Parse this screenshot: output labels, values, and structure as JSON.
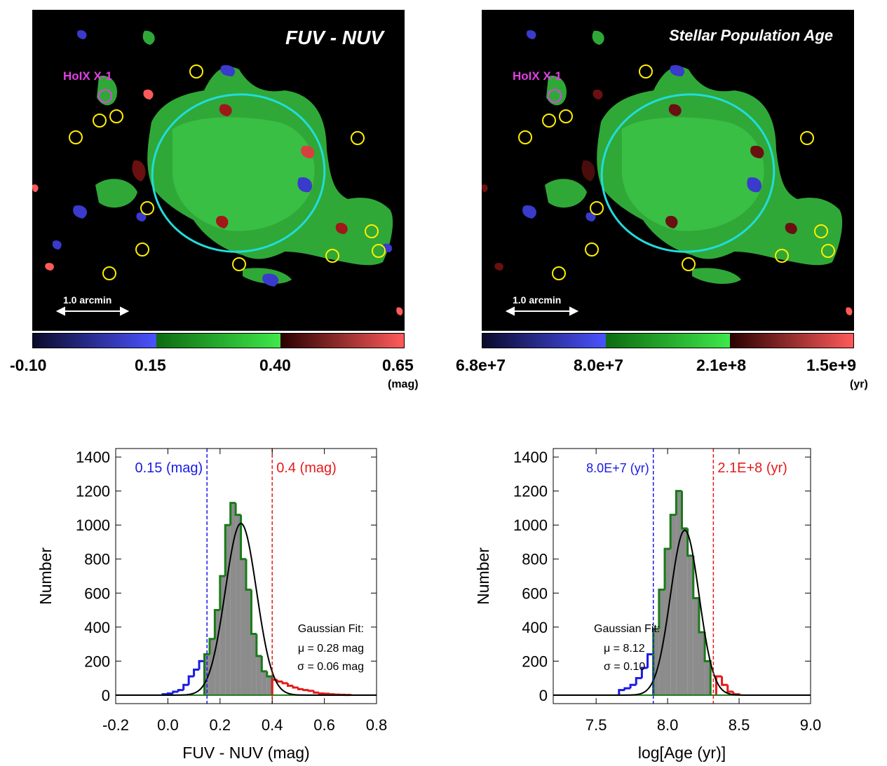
{
  "maps": [
    {
      "title": "FUV - NUV",
      "source_label": "HoIX X-1",
      "scale_bar_label": "1.0 arcmin",
      "colorbar": {
        "ticks": [
          "-0.10",
          "0.15",
          "0.40",
          "0.65"
        ],
        "unit": "(mag)",
        "colors": [
          "#0a0a2a",
          "#4a52ff",
          "#0d6b10",
          "#3ee84a",
          "#2a0000",
          "#ff5a5a"
        ]
      }
    },
    {
      "title": "Stellar Population Age",
      "source_label": "HoIX X-1",
      "scale_bar_label": "1.0 arcmin",
      "colorbar": {
        "ticks": [
          "6.8e+7",
          "8.0e+7",
          "2.1e+8",
          "1.5e+9"
        ],
        "unit": "(yr)",
        "colors": [
          "#0a0a2a",
          "#4a52ff",
          "#0d6b10",
          "#3ee84a",
          "#2a0000",
          "#ff5a5a"
        ]
      }
    }
  ],
  "chart_data": [
    {
      "type": "bar",
      "subtype": "histogram",
      "xlabel": "FUV - NUV (mag)",
      "ylabel": "Number",
      "xlim": [
        -0.2,
        0.8
      ],
      "ylim": [
        -50,
        1450
      ],
      "xticks": [
        -0.2,
        0.0,
        0.2,
        0.4,
        0.6,
        0.8
      ],
      "xtick_labels": [
        "-0.2",
        "0.0",
        "0.2",
        "0.4",
        "0.6",
        "0.8"
      ],
      "yticks": [
        0,
        200,
        400,
        600,
        800,
        1000,
        1200,
        1400
      ],
      "ytick_labels": [
        "0",
        "200",
        "400",
        "600",
        "800",
        "1000",
        "1200",
        "1400"
      ],
      "bin_edges": [
        -0.02,
        0.0,
        0.02,
        0.04,
        0.06,
        0.08,
        0.1,
        0.12,
        0.14,
        0.16,
        0.18,
        0.2,
        0.22,
        0.24,
        0.26,
        0.28,
        0.3,
        0.32,
        0.34,
        0.36,
        0.38,
        0.4,
        0.42,
        0.44,
        0.46,
        0.48,
        0.5,
        0.52,
        0.54,
        0.56,
        0.58,
        0.6,
        0.62,
        0.64,
        0.66,
        0.68,
        0.7
      ],
      "counts": [
        5,
        10,
        20,
        30,
        60,
        110,
        150,
        200,
        240,
        330,
        500,
        700,
        1000,
        1130,
        1060,
        800,
        620,
        360,
        230,
        140,
        110,
        90,
        80,
        70,
        55,
        45,
        35,
        30,
        25,
        15,
        10,
        8,
        5,
        3,
        2,
        1
      ],
      "thresholds": [
        {
          "x": 0.15,
          "label": "0.15 (mag)",
          "color": "#1a1ae6"
        },
        {
          "x": 0.4,
          "label": "0.4 (mag)",
          "color": "#e61a1a"
        }
      ],
      "gaussian": {
        "mu": 0.28,
        "sigma": 0.06,
        "peak": 1010
      },
      "fit_text": [
        "Gaussian Fit:",
        "μ = 0.28 mag",
        "σ = 0.06 mag"
      ],
      "colors": {
        "bar_fill": "#8c8c8c",
        "in_range": "#1a7a1a",
        "low": "#1a1ae6",
        "high": "#e61a1a",
        "fit": "#000000"
      }
    },
    {
      "type": "bar",
      "subtype": "histogram",
      "xlabel": "log[Age (yr)]",
      "ylabel": "Number",
      "xlim": [
        7.2,
        9.0
      ],
      "ylim": [
        -50,
        1450
      ],
      "xticks": [
        7.5,
        8.0,
        8.5,
        9.0
      ],
      "xtick_labels": [
        "7.5",
        "8.0",
        "8.5",
        "9.0"
      ],
      "yticks": [
        0,
        200,
        400,
        600,
        800,
        1000,
        1200,
        1400
      ],
      "ytick_labels": [
        "0",
        "200",
        "400",
        "600",
        "800",
        "1000",
        "1200",
        "1400"
      ],
      "bin_edges": [
        7.66,
        7.7,
        7.74,
        7.78,
        7.82,
        7.86,
        7.9,
        7.94,
        7.98,
        8.02,
        8.06,
        8.1,
        8.14,
        8.18,
        8.22,
        8.26,
        8.3,
        8.34,
        8.38,
        8.42,
        8.46,
        8.5
      ],
      "counts": [
        30,
        40,
        60,
        100,
        160,
        240,
        390,
        620,
        860,
        1060,
        1200,
        980,
        820,
        570,
        370,
        200,
        140,
        110,
        60,
        20,
        5
      ],
      "thresholds": [
        {
          "x": 7.9,
          "label": "8.0E+7 (yr)",
          "color": "#1a1ae6"
        },
        {
          "x": 8.32,
          "label": "2.1E+8 (yr)",
          "color": "#e61a1a"
        }
      ],
      "gaussian": {
        "mu": 8.12,
        "sigma": 0.1,
        "peak": 970
      },
      "fit_text": [
        "Gaussian Fit:",
        "μ = 8.12",
        "σ = 0.10"
      ],
      "colors": {
        "bar_fill": "#8c8c8c",
        "in_range": "#1a7a1a",
        "low": "#1a1ae6",
        "high": "#e61a1a",
        "fit": "#000000"
      }
    }
  ]
}
